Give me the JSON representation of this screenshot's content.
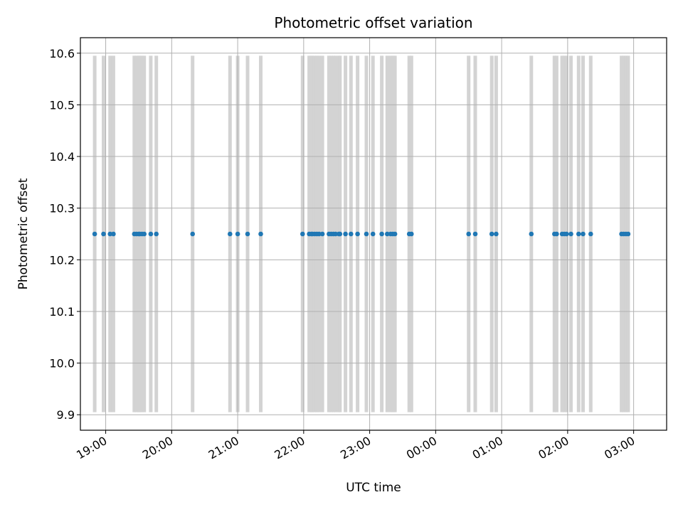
{
  "chart_data": {
    "type": "scatter",
    "title": "Photometric offset variation",
    "xlabel": "UTC time",
    "ylabel": "Photometric offset",
    "x_axis_type": "time",
    "x_ticks": [
      "19:00",
      "20:00",
      "21:00",
      "22:00",
      "23:00",
      "00:00",
      "01:00",
      "02:00",
      "03:00"
    ],
    "y_ticks": [
      "9.9",
      "10.0",
      "10.1",
      "10.2",
      "10.3",
      "10.4",
      "10.5",
      "10.6"
    ],
    "xlim": [
      "18:37",
      "03:30"
    ],
    "ylim": [
      9.87,
      10.63
    ],
    "grid": true,
    "marker_color": "#1f77b4",
    "band_color": "#d3d3d3",
    "band_y_range": [
      9.905,
      10.595
    ],
    "series": [
      {
        "x": [
          "18:50",
          "18:58",
          "19:04",
          "19:07",
          "19:26",
          "19:28",
          "19:30",
          "19:31",
          "19:33",
          "19:35",
          "19:41",
          "19:46",
          "20:19",
          "20:53",
          "21:00",
          "21:09",
          "21:21",
          "21:59",
          "22:05",
          "22:07",
          "22:08",
          "22:10",
          "22:12",
          "22:14",
          "22:17",
          "22:23",
          "22:25",
          "22:27",
          "22:29",
          "22:32",
          "22:33",
          "22:38",
          "22:43",
          "22:49",
          "22:57",
          "23:03",
          "23:11",
          "23:16",
          "23:19",
          "23:21",
          "23:23",
          "23:36",
          "23:38",
          "00:30",
          "00:36",
          "00:51",
          "00:55",
          "01:27",
          "01:48",
          "01:50",
          "01:55",
          "01:57",
          "01:59",
          "02:03",
          "02:10",
          "02:14",
          "02:21",
          "02:49",
          "02:51",
          "02:53",
          "02:55"
        ],
        "y": [
          10.25,
          10.25,
          10.25,
          10.25,
          10.25,
          10.25,
          10.25,
          10.25,
          10.25,
          10.25,
          10.25,
          10.25,
          10.25,
          10.25,
          10.25,
          10.25,
          10.25,
          10.25,
          10.25,
          10.25,
          10.25,
          10.25,
          10.25,
          10.25,
          10.25,
          10.25,
          10.25,
          10.25,
          10.25,
          10.25,
          10.25,
          10.25,
          10.25,
          10.25,
          10.25,
          10.25,
          10.25,
          10.25,
          10.25,
          10.25,
          10.25,
          10.25,
          10.25,
          10.25,
          10.25,
          10.25,
          10.25,
          10.25,
          10.25,
          10.25,
          10.25,
          10.25,
          10.25,
          10.25,
          10.25,
          10.25,
          10.25,
          10.25,
          10.25,
          10.25,
          10.25
        ]
      }
    ]
  }
}
